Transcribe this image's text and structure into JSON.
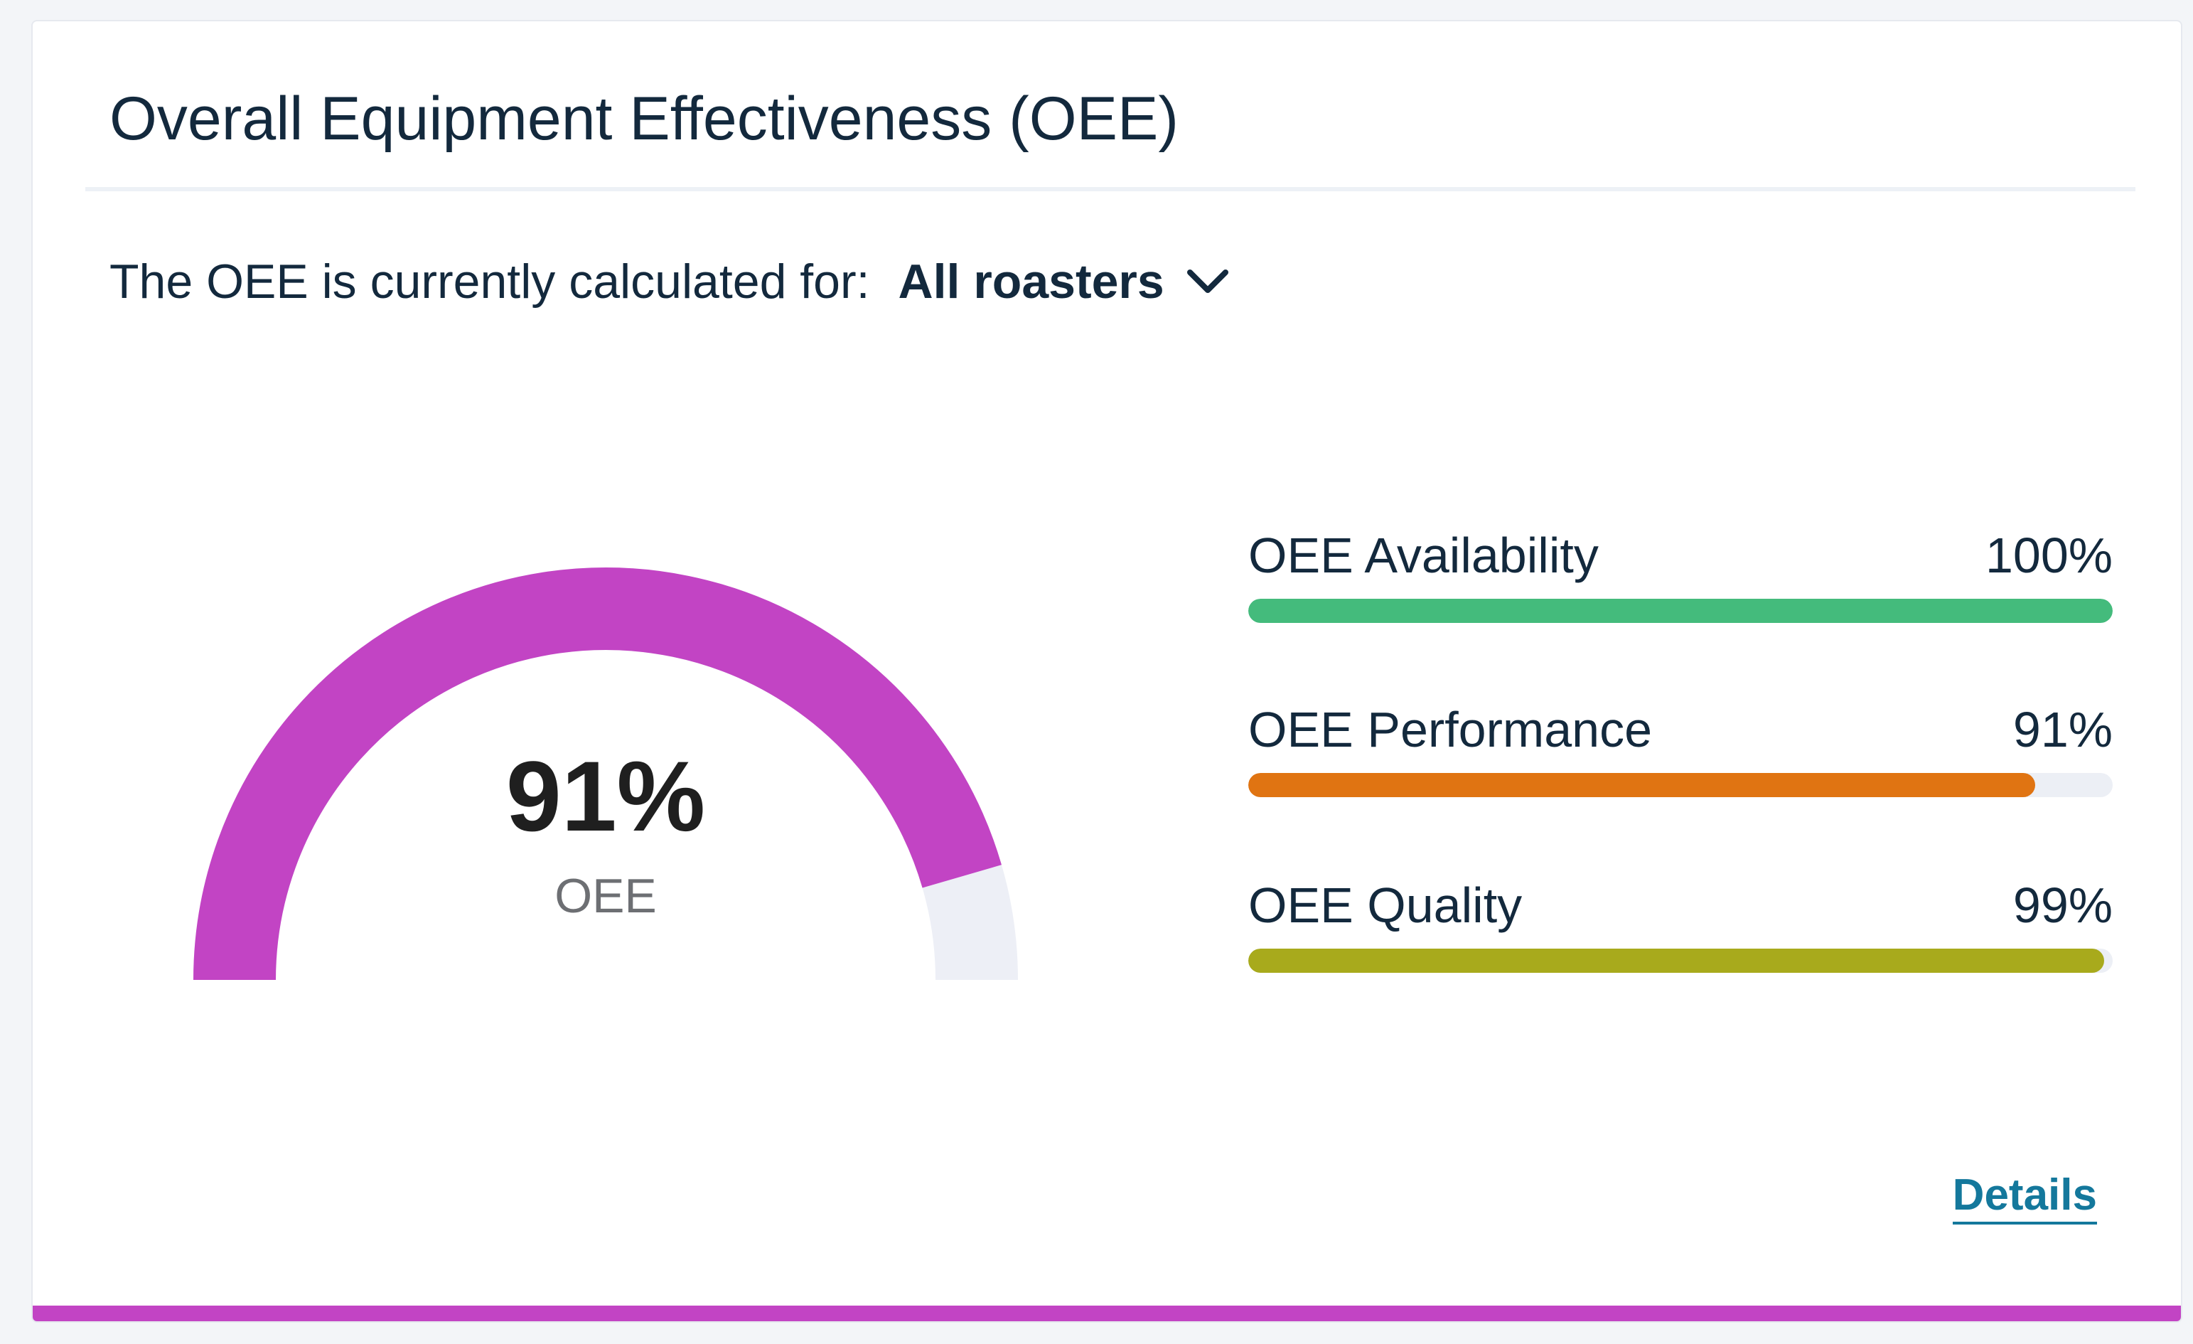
{
  "card": {
    "title": "Overall Equipment Effectiveness (OEE)",
    "accent_color": "#c244c4"
  },
  "scope": {
    "label": "The OEE is currently calculated for:",
    "selected": "All roasters",
    "icon": "chevron-down-icon"
  },
  "gauge": {
    "value": 91,
    "value_label": "91%",
    "label": "OEE",
    "fill_color": "#c244c4",
    "track_color": "#edeff6"
  },
  "metrics": [
    {
      "label": "OEE Availability",
      "value_label": "100%",
      "value": 100,
      "color": "#44bb7c"
    },
    {
      "label": "OEE Performance",
      "value_label": "91%",
      "value": 91,
      "color": "#e07412"
    },
    {
      "label": "OEE Quality",
      "value_label": "99%",
      "value": 99,
      "color": "#a8aa1c"
    }
  ],
  "details_link": "Details"
}
